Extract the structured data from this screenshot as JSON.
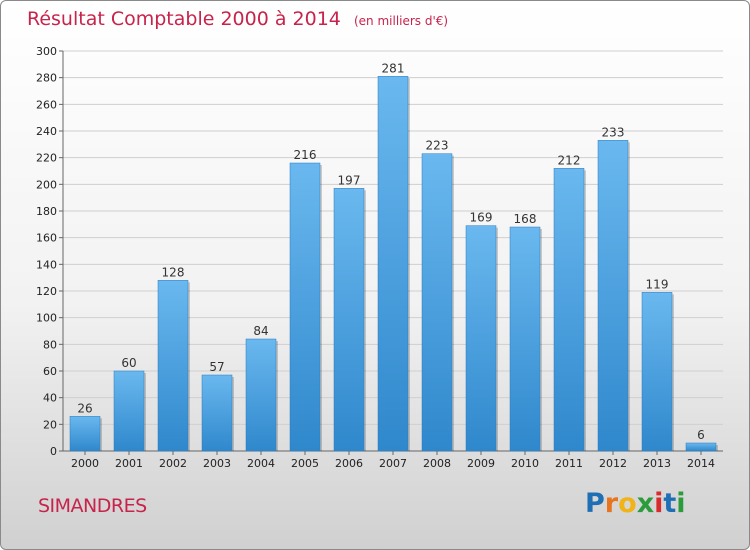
{
  "title": "Résultat Comptable 2000 à 2014",
  "subtitle": "(en milliers d'€)",
  "commune": "SIMANDRES",
  "logo": {
    "text": "Proxiti",
    "letters": [
      "P",
      "r",
      "o",
      "x",
      "i",
      "t",
      "i"
    ],
    "colors": [
      "#1f6fb5",
      "#e8741e",
      "#f0b419",
      "#2b9c3a",
      "#d92b2b",
      "#1f6fb5",
      "#2b9c3a"
    ]
  },
  "colors": {
    "bar_light": "#6ab8ef",
    "bar_dark": "#2f88cc",
    "grid": "#cfcfcf",
    "title": "#c8234b"
  },
  "chart_data": {
    "type": "bar",
    "title": "Résultat Comptable 2000 à 2014",
    "subtitle": "(en milliers d'€)",
    "categories": [
      "2000",
      "2001",
      "2002",
      "2003",
      "2004",
      "2005",
      "2006",
      "2007",
      "2008",
      "2009",
      "2010",
      "2011",
      "2012",
      "2013",
      "2014"
    ],
    "values": [
      26,
      60,
      128,
      57,
      84,
      216,
      197,
      281,
      223,
      169,
      168,
      212,
      233,
      119,
      6
    ],
    "ylim": [
      0,
      300
    ],
    "yticks": [
      0,
      20,
      40,
      60,
      80,
      100,
      120,
      140,
      160,
      180,
      200,
      220,
      240,
      260,
      280,
      300
    ],
    "xlabel": "",
    "ylabel": "",
    "grid": true
  }
}
